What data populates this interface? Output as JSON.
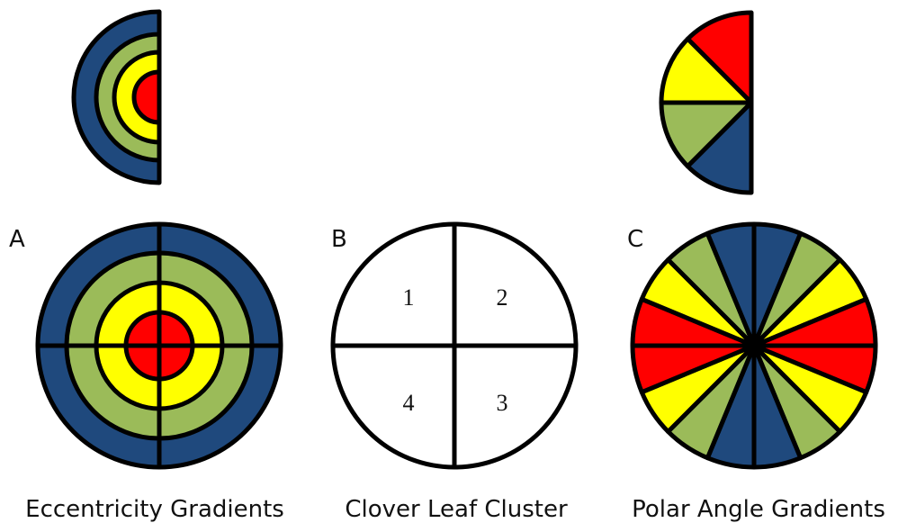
{
  "panels": [
    {
      "letter": "A",
      "caption": "Eccentricity Gradients"
    },
    {
      "letter": "B",
      "caption": "Clover Leaf Cluster",
      "quadrants": [
        "1",
        "2",
        "3",
        "4"
      ]
    },
    {
      "letter": "C",
      "caption": "Polar Angle Gradients"
    }
  ]
}
